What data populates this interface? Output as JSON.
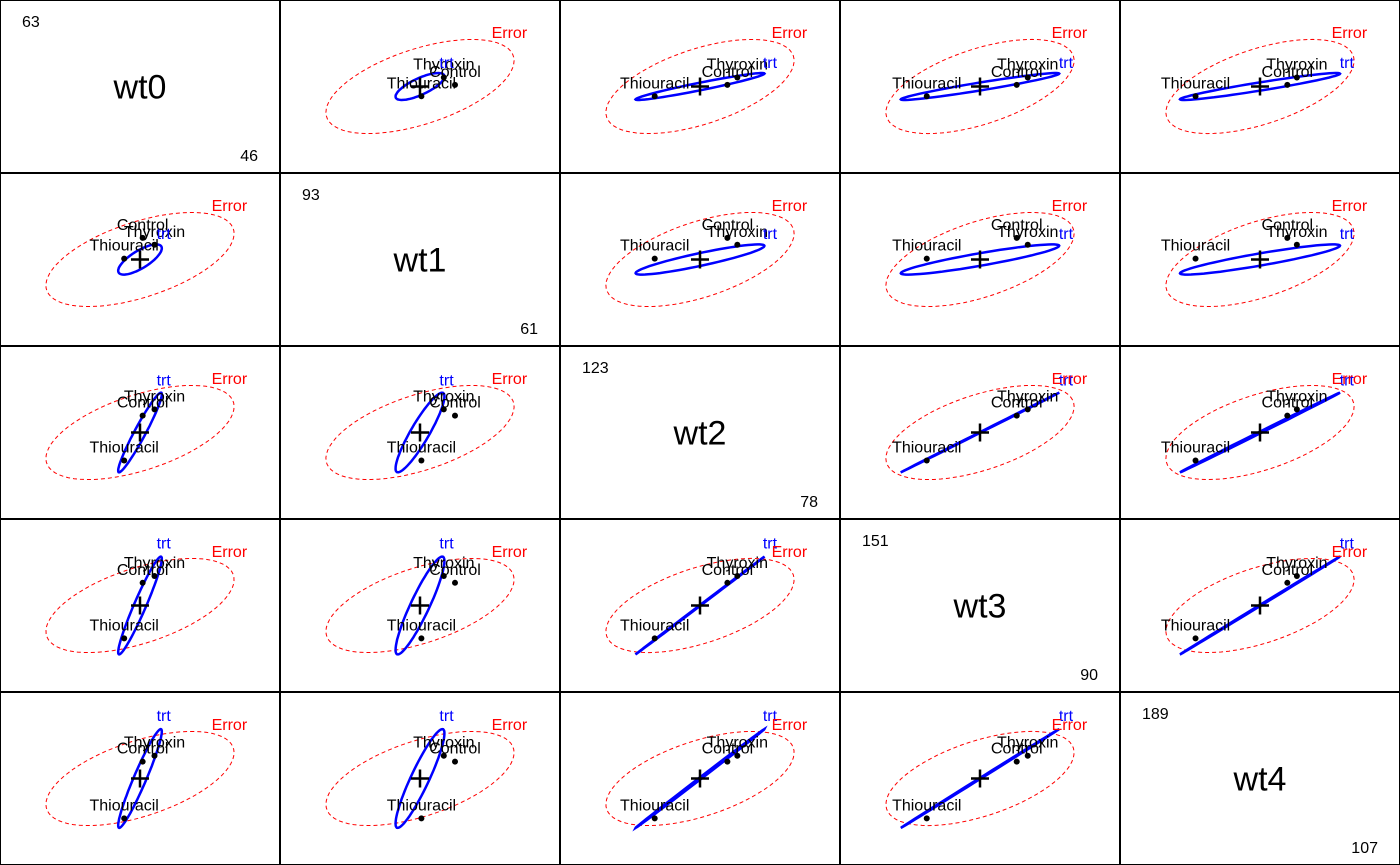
{
  "chart_data": {
    "type": "hypothesis-error-plot-matrix",
    "variables": [
      "wt0",
      "wt1",
      "wt2",
      "wt3",
      "wt4"
    ],
    "ranges": [
      {
        "min": 46,
        "max": 63
      },
      {
        "min": 61,
        "max": 93
      },
      {
        "min": 78,
        "max": 123
      },
      {
        "min": 90,
        "max": 151
      },
      {
        "min": 107,
        "max": 189
      }
    ],
    "groups": [
      "Control",
      "Thiouracil",
      "Thyroxin"
    ],
    "grand_mean": [
      54.5,
      77,
      100.5,
      120.5,
      148
    ],
    "group_means": {
      "Control": [
        54.7,
        82.0,
        106.0,
        130.5,
        158.0
      ],
      "Thiouracil": [
        53.3,
        77.2,
        91.4,
        106.0,
        124.4
      ],
      "Thyroxin": [
        55.6,
        80.4,
        108.0,
        133.5,
        161.5
      ]
    },
    "hypothesis_label": "trt",
    "error_label": "Error",
    "colors": {
      "hypothesis": "#0000ff",
      "error": "#ff0000",
      "points": "#000000",
      "labels": "#000000"
    },
    "legend": "none",
    "grid": false
  }
}
